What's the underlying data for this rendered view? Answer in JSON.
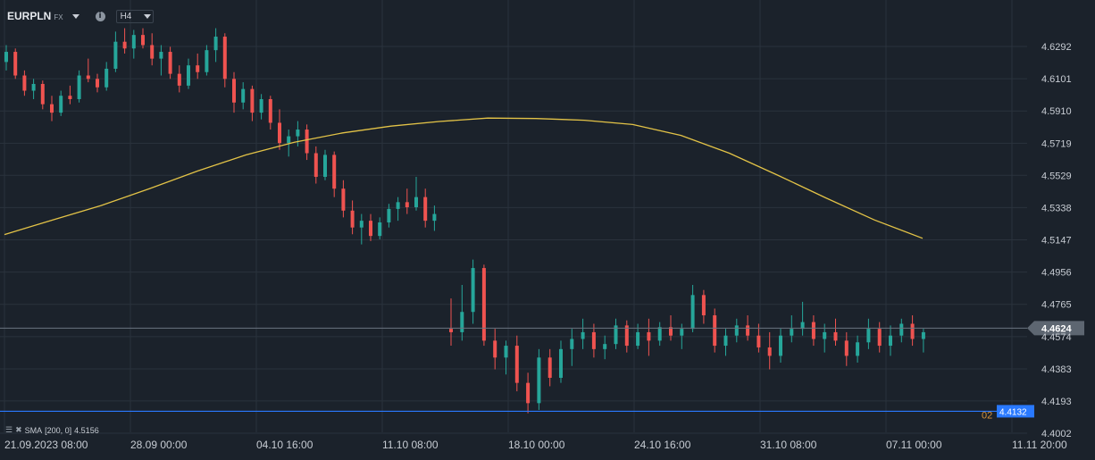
{
  "toolbar": {
    "symbol": "EURPLN",
    "market": "FX",
    "info_icon": "i",
    "timeframe": "H4"
  },
  "indicator": {
    "label": "SMA",
    "params": "[200,  0]",
    "value": "4.5156",
    "color": "#e3c347"
  },
  "colors": {
    "background": "#1b222b",
    "grid": "#2a323c",
    "up": "#26a69a",
    "down": "#ef5350",
    "sma": "#e3c347",
    "price_line": "#6b7480",
    "alert_line": "#2979ff"
  },
  "price_labels": {
    "current": "4.4624",
    "alert": "4.4132",
    "alert_prefix": "02"
  },
  "chart_data": {
    "type": "candlestick",
    "ylim": [
      4.4002,
      4.6414
    ],
    "y_ticks": [
      "4.6292",
      "4.6101",
      "4.5910",
      "4.5719",
      "4.5529",
      "4.5338",
      "4.5147",
      "4.4956",
      "4.4765",
      "4.4574",
      "4.4383",
      "4.4193",
      "4.4002"
    ],
    "x_ticks": [
      "21.09.2023  08:00",
      "28.09  00:00",
      "04.10  16:00",
      "11.10  08:00",
      "18.10  00:00",
      "24.10  16:00",
      "31.10  08:00",
      "07.11  00:00",
      "11.11  20:00"
    ],
    "current_price": 4.4624,
    "horizontal_line": 4.4132,
    "sma_series": {
      "name": "SMA [200, 0]",
      "values": [
        4.5178,
        4.5265,
        4.535,
        4.545,
        4.5555,
        4.565,
        4.5725,
        4.578,
        4.582,
        4.5848,
        4.5868,
        4.5865,
        4.5855,
        4.583,
        4.5765,
        4.566,
        4.553,
        4.5395,
        4.5265,
        4.5156
      ]
    },
    "candles": [
      [
        4.62,
        4.63,
        4.615,
        4.626
      ],
      [
        4.626,
        4.628,
        4.61,
        4.612
      ],
      [
        4.612,
        4.615,
        4.6,
        4.603
      ],
      [
        4.603,
        4.61,
        4.598,
        4.607
      ],
      [
        4.607,
        4.609,
        4.592,
        4.595
      ],
      [
        4.595,
        4.6,
        4.585,
        4.59
      ],
      [
        4.59,
        4.603,
        4.588,
        4.6
      ],
      [
        4.6,
        4.606,
        4.595,
        4.598
      ],
      [
        4.598,
        4.615,
        4.596,
        4.612
      ],
      [
        4.612,
        4.622,
        4.608,
        4.61
      ],
      [
        4.61,
        4.613,
        4.602,
        4.605
      ],
      [
        4.605,
        4.62,
        4.603,
        4.616
      ],
      [
        4.616,
        4.638,
        4.614,
        4.632
      ],
      [
        4.632,
        4.64,
        4.625,
        4.628
      ],
      [
        4.628,
        4.639,
        4.622,
        4.636
      ],
      [
        4.636,
        4.64,
        4.628,
        4.63
      ],
      [
        4.63,
        4.637,
        4.618,
        4.622
      ],
      [
        4.622,
        4.63,
        4.612,
        4.626
      ],
      [
        4.626,
        4.629,
        4.61,
        4.613
      ],
      [
        4.613,
        4.618,
        4.602,
        4.606
      ],
      [
        4.606,
        4.622,
        4.604,
        4.618
      ],
      [
        4.618,
        4.625,
        4.61,
        4.614
      ],
      [
        4.614,
        4.63,
        4.612,
        4.627
      ],
      [
        4.627,
        4.64,
        4.62,
        4.635
      ],
      [
        4.635,
        4.637,
        4.605,
        4.61
      ],
      [
        4.61,
        4.614,
        4.59,
        4.596
      ],
      [
        4.596,
        4.608,
        4.592,
        4.604
      ],
      [
        4.604,
        4.606,
        4.585,
        4.59
      ],
      [
        4.59,
        4.601,
        4.586,
        4.598
      ],
      [
        4.598,
        4.6,
        4.58,
        4.584
      ],
      [
        4.584,
        4.592,
        4.568,
        4.572
      ],
      [
        4.572,
        4.58,
        4.564,
        4.576
      ],
      [
        4.576,
        4.585,
        4.57,
        4.58
      ],
      [
        4.58,
        4.583,
        4.562,
        4.566
      ],
      [
        4.566,
        4.57,
        4.548,
        4.552
      ],
      [
        4.552,
        4.568,
        4.55,
        4.565
      ],
      [
        4.565,
        4.567,
        4.54,
        4.545
      ],
      [
        4.545,
        4.55,
        4.528,
        4.532
      ],
      [
        4.532,
        4.538,
        4.518,
        4.522
      ],
      [
        4.522,
        4.53,
        4.512,
        4.526
      ],
      [
        4.526,
        4.53,
        4.514,
        4.517
      ],
      [
        4.517,
        4.528,
        4.515,
        4.525
      ],
      [
        4.525,
        4.536,
        4.522,
        4.533
      ],
      [
        4.533,
        4.54,
        4.526,
        4.537
      ],
      [
        4.537,
        4.545,
        4.53,
        4.534
      ],
      [
        4.534,
        4.552,
        4.532,
        4.54
      ],
      [
        4.54,
        4.545,
        4.522,
        4.526
      ],
      [
        4.526,
        4.535,
        4.52,
        4.53
      ],
      [
        4.462,
        4.48,
        4.452,
        4.46
      ],
      [
        4.46,
        4.488,
        4.455,
        4.472
      ],
      [
        4.472,
        4.503,
        4.465,
        4.498
      ],
      [
        4.498,
        4.5,
        4.452,
        4.455
      ],
      [
        4.455,
        4.462,
        4.438,
        4.445
      ],
      [
        4.445,
        4.455,
        4.435,
        4.452
      ],
      [
        4.452,
        4.458,
        4.425,
        4.43
      ],
      [
        4.43,
        4.436,
        4.412,
        4.418
      ],
      [
        4.418,
        4.45,
        4.414,
        4.445
      ],
      [
        4.445,
        4.45,
        4.428,
        4.433
      ],
      [
        4.433,
        4.455,
        4.43,
        4.45
      ],
      [
        4.45,
        4.462,
        4.44,
        4.456
      ],
      [
        4.456,
        4.468,
        4.45,
        4.46
      ],
      [
        4.46,
        4.465,
        4.445,
        4.45
      ],
      [
        4.45,
        4.458,
        4.444,
        4.453
      ],
      [
        4.453,
        4.468,
        4.45,
        4.464
      ],
      [
        4.464,
        4.467,
        4.448,
        4.452
      ],
      [
        4.452,
        4.465,
        4.45,
        4.46
      ],
      [
        4.46,
        4.468,
        4.446,
        4.455
      ],
      [
        4.455,
        4.466,
        4.452,
        4.463
      ],
      [
        4.463,
        4.47,
        4.455,
        4.458
      ],
      [
        4.458,
        4.465,
        4.45,
        4.462
      ],
      [
        4.462,
        4.488,
        4.46,
        4.482
      ],
      [
        4.482,
        4.485,
        4.465,
        4.47
      ],
      [
        4.47,
        4.474,
        4.448,
        4.452
      ],
      [
        4.452,
        4.462,
        4.446,
        4.458
      ],
      [
        4.458,
        4.468,
        4.454,
        4.464
      ],
      [
        4.464,
        4.47,
        4.455,
        4.458
      ],
      [
        4.458,
        4.465,
        4.448,
        4.451
      ],
      [
        4.451,
        4.46,
        4.438,
        4.446
      ],
      [
        4.446,
        4.462,
        4.442,
        4.458
      ],
      [
        4.458,
        4.47,
        4.454,
        4.462
      ],
      [
        4.462,
        4.478,
        4.458,
        4.466
      ],
      [
        4.466,
        4.47,
        4.452,
        4.456
      ],
      [
        4.456,
        4.465,
        4.448,
        4.46
      ],
      [
        4.46,
        4.468,
        4.452,
        4.455
      ],
      [
        4.455,
        4.46,
        4.44,
        4.446
      ],
      [
        4.446,
        4.458,
        4.442,
        4.454
      ],
      [
        4.454,
        4.468,
        4.45,
        4.462
      ],
      [
        4.462,
        4.466,
        4.448,
        4.452
      ],
      [
        4.452,
        4.464,
        4.446,
        4.458
      ],
      [
        4.458,
        4.468,
        4.454,
        4.465
      ],
      [
        4.465,
        4.47,
        4.452,
        4.456
      ],
      [
        4.456,
        4.462,
        4.448,
        4.46
      ]
    ]
  }
}
